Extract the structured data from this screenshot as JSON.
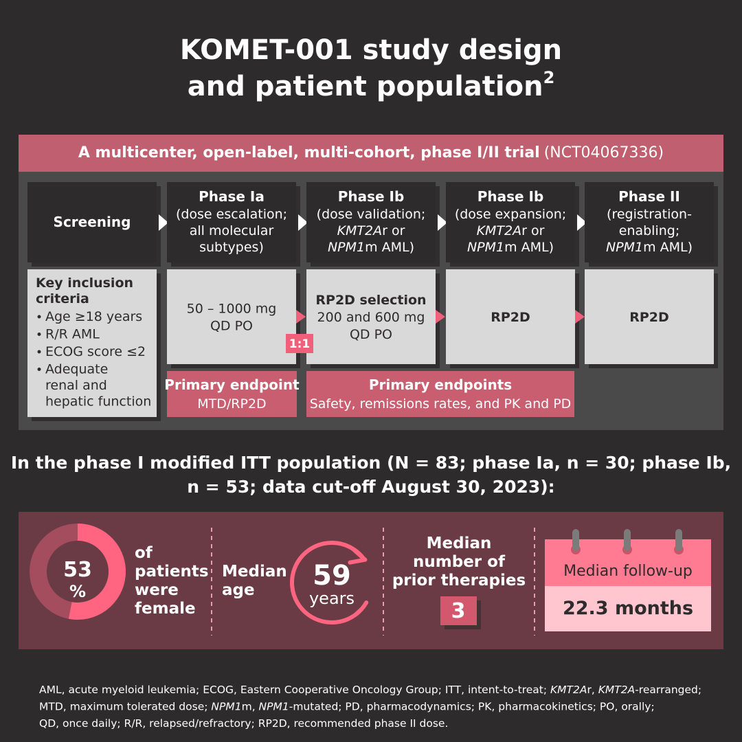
{
  "title": {
    "line1": "KOMET-001 study design",
    "line2": "and patient population",
    "superscript": "2"
  },
  "trial": {
    "header": {
      "bold": "A multicenter, open-label, multi-cohort, phase I/II trial",
      "normal": "(NCT04067336)"
    },
    "phases": [
      {
        "name": "Screening"
      },
      {
        "name": "Phase Ia",
        "lines": [
          [
            "(dose escalation;"
          ],
          [
            "all molecular"
          ],
          [
            "subtypes)"
          ]
        ]
      },
      {
        "name": "Phase Ib",
        "lines": [
          [
            "(dose validation;"
          ],
          [
            "KMT2A",
            "r or"
          ],
          [
            "NPM1",
            "m AML)"
          ]
        ]
      },
      {
        "name": "Phase Ib",
        "lines": [
          [
            "(dose expansion;"
          ],
          [
            "KMT2A",
            "r or"
          ],
          [
            "NPM1",
            "m AML)"
          ]
        ]
      },
      {
        "name": "Phase II",
        "lines": [
          [
            "(registration-"
          ],
          [
            "enabling;"
          ],
          [
            "NPM1",
            "m AML)"
          ]
        ]
      }
    ],
    "inclusion": {
      "title": [
        "Key inclusion",
        "criteria"
      ],
      "bullets": [
        [
          "Age ≥18 years"
        ],
        [
          "R/R AML"
        ],
        [
          "ECOG score ≤2"
        ],
        [
          "Adequate",
          "renal and",
          "hepatic function"
        ]
      ]
    },
    "doses": [
      {
        "lines": [
          "50 – 1000 mg",
          "QD PO"
        ]
      },
      {
        "title": "RP2D selection",
        "lines": [
          "200 and 600 mg",
          "QD PO"
        ]
      },
      {
        "title": "RP2D"
      },
      {
        "title": "RP2D"
      }
    ],
    "ratio": "1:1",
    "endpoints": [
      {
        "title": "Primary endpoint",
        "text": "MTD/RP2D"
      },
      {
        "title": "Primary endpoints",
        "text": "Safety, remissions rates, and PK and PD"
      }
    ]
  },
  "population": [
    "In the phase I modified ITT population (N = 83; phase Ia, n = 30; phase Ib,",
    "n = 53; data cut-off August 30, 2023):"
  ],
  "stats": {
    "female": {
      "percent": 53,
      "unit": "%",
      "label": [
        "of",
        "patients",
        "were",
        "female"
      ]
    },
    "age": {
      "label": [
        "Median",
        "age"
      ],
      "value": 59,
      "unit": "years"
    },
    "therapies": {
      "label": [
        "Median",
        "number of",
        "prior therapies"
      ],
      "value": 3
    },
    "followup": {
      "label": "Median follow-up",
      "value": "22.3 months"
    }
  },
  "footnote": [
    [
      "AML, acute myeloid leukemia; ECOG, Eastern Cooperative Oncology Group; ITT, intent-to-treat; ",
      "KMT2A",
      "r, ",
      "KMT2A",
      "-rearranged;"
    ],
    [
      "MTD, maximum tolerated dose; ",
      "NPM1",
      "m, ",
      "NPM1",
      "-mutated; PD, pharmacodynamics; PK, pharmacokinetics; PO, orally;"
    ],
    [
      "QD, once daily; R/R, relapsed/refractory; RP2D, recommended phase II dose."
    ]
  ]
}
